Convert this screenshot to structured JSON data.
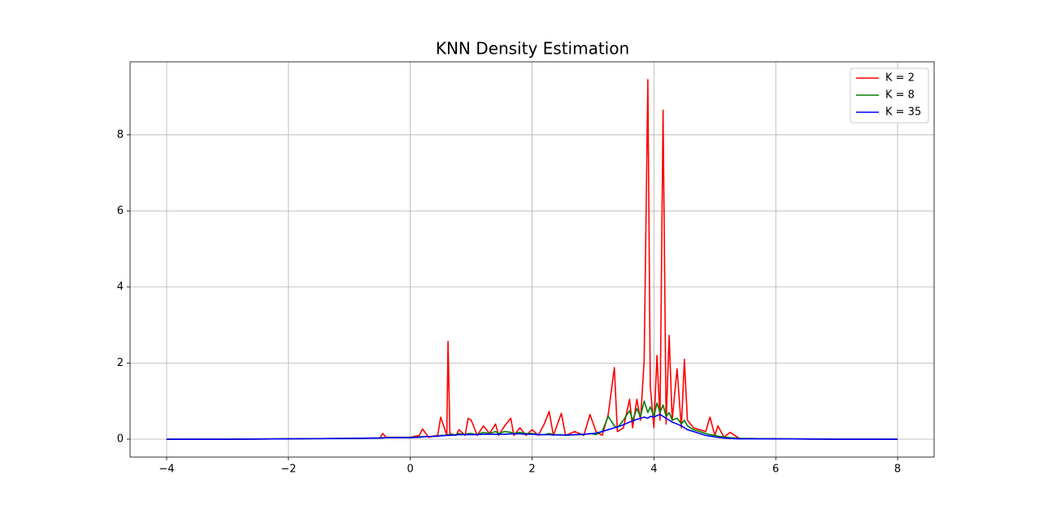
{
  "chart_data": {
    "type": "line",
    "title": "KNN Density Estimation",
    "x": [
      -4,
      -3,
      -2,
      -1,
      -0.5,
      -0.45,
      -0.4,
      0,
      0.15,
      0.2,
      0.3,
      0.45,
      0.5,
      0.6,
      0.62,
      0.65,
      0.75,
      0.8,
      0.9,
      0.95,
      1.0,
      1.1,
      1.2,
      1.3,
      1.4,
      1.45,
      1.55,
      1.65,
      1.7,
      1.8,
      1.9,
      2.0,
      2.1,
      2.2,
      2.28,
      2.35,
      2.48,
      2.55,
      2.7,
      2.85,
      2.95,
      3.05,
      3.15,
      3.25,
      3.35,
      3.4,
      3.5,
      3.6,
      3.65,
      3.72,
      3.78,
      3.84,
      3.9,
      3.94,
      4.0,
      4.05,
      4.1,
      4.15,
      4.2,
      4.25,
      4.3,
      4.38,
      4.45,
      4.5,
      4.55,
      4.65,
      4.75,
      4.85,
      4.92,
      5.0,
      5.05,
      5.15,
      5.25,
      5.4,
      6,
      7,
      8
    ],
    "series": [
      {
        "name": "K = 2",
        "color": "#ff0000",
        "values": [
          0,
          0,
          0.01,
          0.02,
          0.03,
          0.15,
          0.05,
          0.05,
          0.1,
          0.27,
          0.05,
          0.1,
          0.58,
          0.1,
          2.57,
          0.15,
          0.1,
          0.25,
          0.1,
          0.55,
          0.5,
          0.1,
          0.35,
          0.15,
          0.4,
          0.1,
          0.35,
          0.55,
          0.1,
          0.3,
          0.1,
          0.25,
          0.1,
          0.4,
          0.73,
          0.1,
          0.68,
          0.1,
          0.2,
          0.1,
          0.65,
          0.2,
          0.1,
          0.65,
          1.88,
          0.2,
          0.3,
          1.05,
          0.3,
          1.05,
          0.5,
          2.08,
          9.45,
          1.4,
          0.3,
          2.2,
          0.5,
          8.65,
          0.4,
          2.73,
          0.5,
          1.85,
          0.3,
          2.1,
          0.5,
          0.3,
          0.25,
          0.2,
          0.58,
          0.1,
          0.35,
          0.05,
          0.18,
          0.02,
          0.01,
          0,
          0
        ]
      },
      {
        "name": "K = 8",
        "color": "#008000",
        "values": [
          0,
          0,
          0.01,
          0.02,
          0.03,
          0.04,
          0.04,
          0.05,
          0.06,
          0.07,
          0.07,
          0.08,
          0.1,
          0.1,
          0.12,
          0.12,
          0.12,
          0.15,
          0.12,
          0.15,
          0.15,
          0.12,
          0.18,
          0.15,
          0.2,
          0.15,
          0.2,
          0.18,
          0.15,
          0.18,
          0.15,
          0.15,
          0.12,
          0.12,
          0.15,
          0.12,
          0.12,
          0.1,
          0.12,
          0.12,
          0.15,
          0.12,
          0.2,
          0.6,
          0.35,
          0.3,
          0.5,
          0.75,
          0.5,
          0.8,
          0.6,
          1.0,
          0.7,
          0.85,
          0.6,
          0.95,
          0.7,
          0.9,
          0.6,
          0.7,
          0.5,
          0.55,
          0.4,
          0.5,
          0.35,
          0.25,
          0.2,
          0.15,
          0.12,
          0.1,
          0.08,
          0.06,
          0.04,
          0.02,
          0.01,
          0,
          0
        ]
      },
      {
        "name": "K = 35",
        "color": "#0000ff",
        "values": [
          0,
          0,
          0.01,
          0.02,
          0.03,
          0.03,
          0.04,
          0.04,
          0.05,
          0.06,
          0.07,
          0.08,
          0.09,
          0.1,
          0.1,
          0.1,
          0.11,
          0.12,
          0.12,
          0.12,
          0.12,
          0.12,
          0.13,
          0.13,
          0.13,
          0.13,
          0.13,
          0.14,
          0.14,
          0.14,
          0.13,
          0.13,
          0.12,
          0.12,
          0.12,
          0.11,
          0.11,
          0.11,
          0.12,
          0.13,
          0.14,
          0.16,
          0.2,
          0.25,
          0.3,
          0.32,
          0.38,
          0.45,
          0.48,
          0.52,
          0.55,
          0.58,
          0.55,
          0.6,
          0.58,
          0.62,
          0.65,
          0.6,
          0.55,
          0.5,
          0.45,
          0.4,
          0.35,
          0.3,
          0.25,
          0.2,
          0.15,
          0.1,
          0.08,
          0.06,
          0.05,
          0.03,
          0.02,
          0.01,
          0.01,
          0,
          0
        ]
      }
    ],
    "xlim": [
      -4.6,
      8.6
    ],
    "xticks": [
      {
        "value": -4,
        "label": "−4"
      },
      {
        "value": -2,
        "label": "−2"
      },
      0,
      2,
      4,
      6,
      8
    ],
    "ylim": [
      -0.47,
      9.92
    ],
    "yticks": [
      0,
      2,
      4,
      6,
      8
    ],
    "grid": true,
    "legend": "upper right"
  }
}
